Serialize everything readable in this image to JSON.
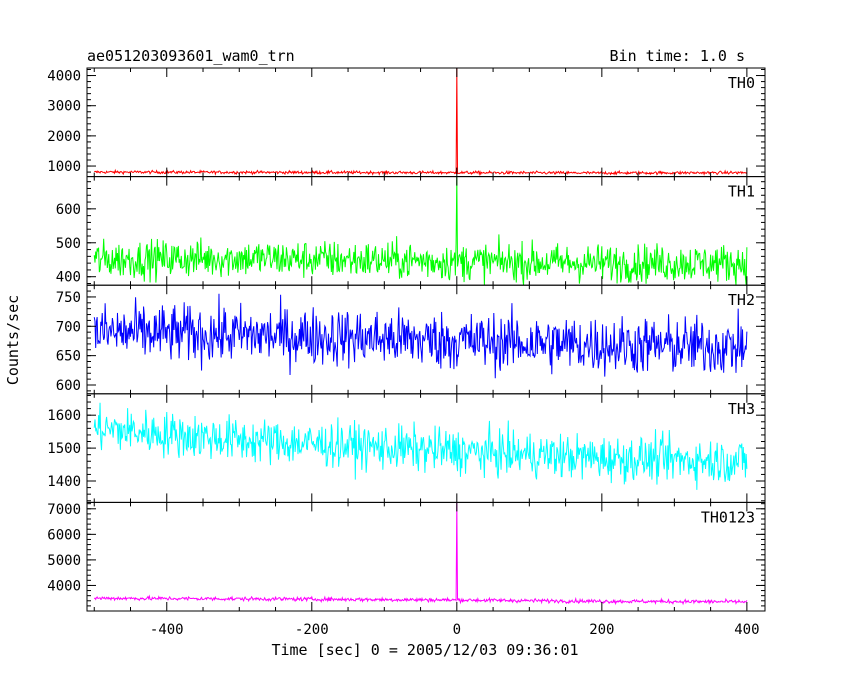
{
  "header": {
    "title": "ae051203093601_wam0_trn",
    "bin_time": "Bin time: 1.0 s"
  },
  "chart_data": {
    "type": "line",
    "xlabel": "Time [sec] 0 = 2005/12/03 09:36:01",
    "ylabel": "Counts/sec",
    "xlim": [
      -510,
      425
    ],
    "x_ticks": [
      -400,
      -200,
      0,
      200,
      400
    ],
    "x_range_data": [
      -500,
      400
    ],
    "panels": [
      {
        "name": "TH0",
        "color": "#ff0000",
        "ylim": [
          650,
          4250
        ],
        "y_ticks": [
          1000,
          2000,
          3000,
          4000
        ],
        "baseline": [
          [
            -500,
            800
          ],
          [
            -250,
            790
          ],
          [
            0,
            780
          ],
          [
            200,
            770
          ],
          [
            400,
            780
          ]
        ],
        "noise": 40,
        "spike": {
          "x": 0,
          "y": 4250
        }
      },
      {
        "name": "TH1",
        "color": "#00ff00",
        "ylim": [
          375,
          695
        ],
        "y_ticks": [
          400,
          500,
          600
        ],
        "baseline": [
          [
            -500,
            450
          ],
          [
            -300,
            455
          ],
          [
            0,
            445
          ],
          [
            200,
            440
          ],
          [
            400,
            440
          ]
        ],
        "noise": 45,
        "spike": {
          "x": 0,
          "y": 695
        }
      },
      {
        "name": "TH2",
        "color": "#0000ff",
        "ylim": [
          585,
          770
        ],
        "y_ticks": [
          600,
          650,
          700,
          750
        ],
        "baseline": [
          [
            -500,
            690
          ],
          [
            -200,
            683
          ],
          [
            0,
            675
          ],
          [
            200,
            668
          ],
          [
            400,
            665
          ]
        ],
        "noise": 40
      },
      {
        "name": "TH3",
        "color": "#00ffff",
        "ylim": [
          1335,
          1665
        ],
        "y_ticks": [
          1400,
          1500,
          1600
        ],
        "baseline": [
          [
            -500,
            1560
          ],
          [
            -300,
            1525
          ],
          [
            0,
            1490
          ],
          [
            200,
            1470
          ],
          [
            400,
            1460
          ]
        ],
        "noise": 55
      },
      {
        "name": "TH0123",
        "color": "#ff00ff",
        "ylim": [
          3000,
          7250
        ],
        "y_ticks": [
          4000,
          5000,
          6000,
          7000
        ],
        "baseline": [
          [
            -500,
            3500
          ],
          [
            -250,
            3470
          ],
          [
            0,
            3430
          ],
          [
            200,
            3380
          ],
          [
            400,
            3360
          ]
        ],
        "noise": 60,
        "spike": {
          "x": 0,
          "y": 7250
        }
      }
    ]
  }
}
